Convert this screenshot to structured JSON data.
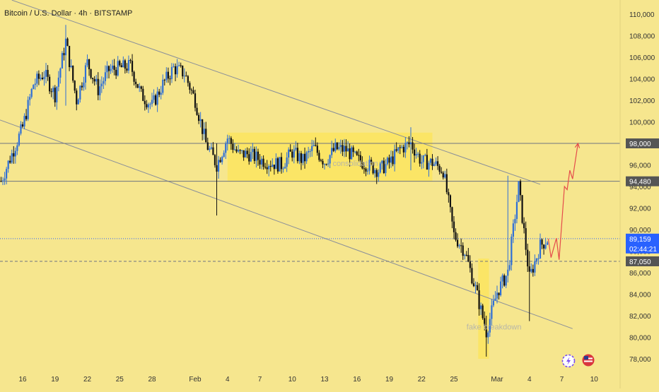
{
  "header": {
    "symbol_title": "Bitcoin / U.S. Dollar · 4h · BITSTAMP"
  },
  "colors": {
    "background": "#f6e68e",
    "candle_up": "#2f6fd6",
    "candle_down": "#111111",
    "channel_line": "#8a8f9a",
    "level_line": "#6f7480",
    "zone_fill": "#fbe566",
    "projection": "#e54b4b",
    "price_badge": "#2962ff",
    "label_badge": "#555555",
    "axis_text": "#333333",
    "annotation_text": "#b7b6a8"
  },
  "chart_data": {
    "type": "candlestick",
    "title": "Bitcoin / U.S. Dollar · 4h · BITSTAMP",
    "ylim": [
      77000,
      111000
    ],
    "y_ticks": [
      110000,
      108000,
      106000,
      104000,
      102000,
      100000,
      98000,
      96000,
      94000,
      92000,
      90000,
      88000,
      86000,
      84000,
      82000,
      80000,
      78000
    ],
    "y_tick_labels": [
      "110,000",
      "108,000",
      "106,000",
      "104,000",
      "102,000",
      "100,000",
      "98,000",
      "96,000",
      "94,000",
      "92,000",
      "90,000",
      "88,000",
      "86,000",
      "84,000",
      "82,000",
      "80,000",
      "78,000"
    ],
    "x_ticks": [
      {
        "label": "16",
        "date": "2025-01-16"
      },
      {
        "label": "19",
        "date": "2025-01-19"
      },
      {
        "label": "22",
        "date": "2025-01-22"
      },
      {
        "label": "25",
        "date": "2025-01-25"
      },
      {
        "label": "28",
        "date": "2025-01-28"
      },
      {
        "label": "Feb",
        "date": "2025-02-01"
      },
      {
        "label": "4",
        "date": "2025-02-04"
      },
      {
        "label": "7",
        "date": "2025-02-07"
      },
      {
        "label": "10",
        "date": "2025-02-10"
      },
      {
        "label": "13",
        "date": "2025-02-13"
      },
      {
        "label": "16",
        "date": "2025-02-16"
      },
      {
        "label": "19",
        "date": "2025-02-19"
      },
      {
        "label": "22",
        "date": "2025-02-22"
      },
      {
        "label": "25",
        "date": "2025-02-25"
      },
      {
        "label": "Mar",
        "date": "2025-03-01"
      },
      {
        "label": "4",
        "date": "2025-03-04"
      },
      {
        "label": "7",
        "date": "2025-03-07"
      },
      {
        "label": "10",
        "date": "2025-03-10"
      }
    ],
    "anchors": [
      [
        "2025-01-14",
        94500
      ],
      [
        "2025-01-15",
        97000
      ],
      [
        "2025-01-16",
        99500
      ],
      [
        "2025-01-17",
        103500
      ],
      [
        "2025-01-18",
        104500
      ],
      [
        "2025-01-19",
        102500
      ],
      [
        "2025-01-20",
        107500
      ],
      [
        "2025-01-21",
        102000
      ],
      [
        "2025-01-22",
        105500
      ],
      [
        "2025-01-23",
        103000
      ],
      [
        "2025-01-24",
        104800
      ],
      [
        "2025-01-25",
        105000
      ],
      [
        "2025-01-26",
        105200
      ],
      [
        "2025-01-27",
        102500
      ],
      [
        "2025-01-28",
        101500
      ],
      [
        "2025-01-29",
        103500
      ],
      [
        "2025-01-30",
        105000
      ],
      [
        "2025-01-31",
        104500
      ],
      [
        "2025-02-01",
        102000
      ],
      [
        "2025-02-02",
        98000
      ],
      [
        "2025-02-03",
        96000
      ],
      [
        "2025-02-04",
        98500
      ],
      [
        "2025-02-05",
        97000
      ],
      [
        "2025-02-06",
        97000
      ],
      [
        "2025-02-07",
        96500
      ],
      [
        "2025-02-08",
        96200
      ],
      [
        "2025-02-09",
        96000
      ],
      [
        "2025-02-10",
        97200
      ],
      [
        "2025-02-11",
        96400
      ],
      [
        "2025-02-12",
        97600
      ],
      [
        "2025-02-13",
        96300
      ],
      [
        "2025-02-14",
        97500
      ],
      [
        "2025-02-15",
        97400
      ],
      [
        "2025-02-16",
        96500
      ],
      [
        "2025-02-17",
        96000
      ],
      [
        "2025-02-18",
        95500
      ],
      [
        "2025-02-19",
        96200
      ],
      [
        "2025-02-20",
        97500
      ],
      [
        "2025-02-21",
        98000
      ],
      [
        "2025-02-22",
        96300
      ],
      [
        "2025-02-23",
        96200
      ],
      [
        "2025-02-24",
        95500
      ],
      [
        "2025-02-25",
        89500
      ],
      [
        "2025-02-26",
        88000
      ],
      [
        "2025-02-27",
        84500
      ],
      [
        "2025-02-28",
        80500
      ],
      [
        "2025-03-01",
        84200
      ],
      [
        "2025-03-02",
        86000
      ],
      [
        "2025-03-03",
        94000
      ],
      [
        "2025-03-04",
        85500
      ],
      [
        "2025-03-05",
        88500
      ],
      [
        "2025-03-05T18:00",
        89159
      ]
    ],
    "spikes": [
      {
        "date": "2025-01-20",
        "high": 109000,
        "low": 101500
      },
      {
        "date": "2025-02-03",
        "high": 98000,
        "low": 91300
      },
      {
        "date": "2025-02-21",
        "high": 99500,
        "low": 95500
      },
      {
        "date": "2025-02-28",
        "high": 82000,
        "low": 78200
      },
      {
        "date": "2025-03-02",
        "high": 95000,
        "low": 86000
      },
      {
        "date": "2025-03-04",
        "high": 88000,
        "low": 81500
      }
    ],
    "horizontal_levels": [
      {
        "price": 98000,
        "label": "98,000",
        "style": "solid"
      },
      {
        "price": 94480,
        "label": "94,480",
        "style": "solid"
      },
      {
        "price": 89159,
        "label": "89,159",
        "sublabel": "02:44:21",
        "style": "dotted",
        "current": true
      },
      {
        "price": 87050,
        "label": "87,050",
        "style": "dashed"
      }
    ],
    "channel": {
      "upper": [
        [
          "2025-01-15",
          111300
        ],
        [
          "2025-03-05",
          94200
        ]
      ],
      "lower": [
        [
          "2025-01-13",
          100500
        ],
        [
          "2025-03-08",
          80800
        ]
      ]
    },
    "zones": [
      {
        "x0": "2025-02-04",
        "x1": "2025-02-23",
        "y0": 94480,
        "y1": 99000,
        "label": "consolidation"
      },
      {
        "x0": "2025-02-27T06:00",
        "x1": "2025-02-28T06:00",
        "y0": 78000,
        "y1": 87300,
        "label": "fake breakdown"
      }
    ],
    "projection": [
      [
        "2025-03-05T18:00",
        89159
      ],
      [
        "2025-03-06",
        87400
      ],
      [
        "2025-03-06T12:00",
        89200
      ],
      [
        "2025-03-06T18:00",
        87200
      ],
      [
        "2025-03-07T06:00",
        94000
      ],
      [
        "2025-03-07T12:00",
        93700
      ],
      [
        "2025-03-07T18:00",
        95500
      ],
      [
        "2025-03-08",
        94700
      ],
      [
        "2025-03-08T12:00",
        98000
      ]
    ]
  }
}
